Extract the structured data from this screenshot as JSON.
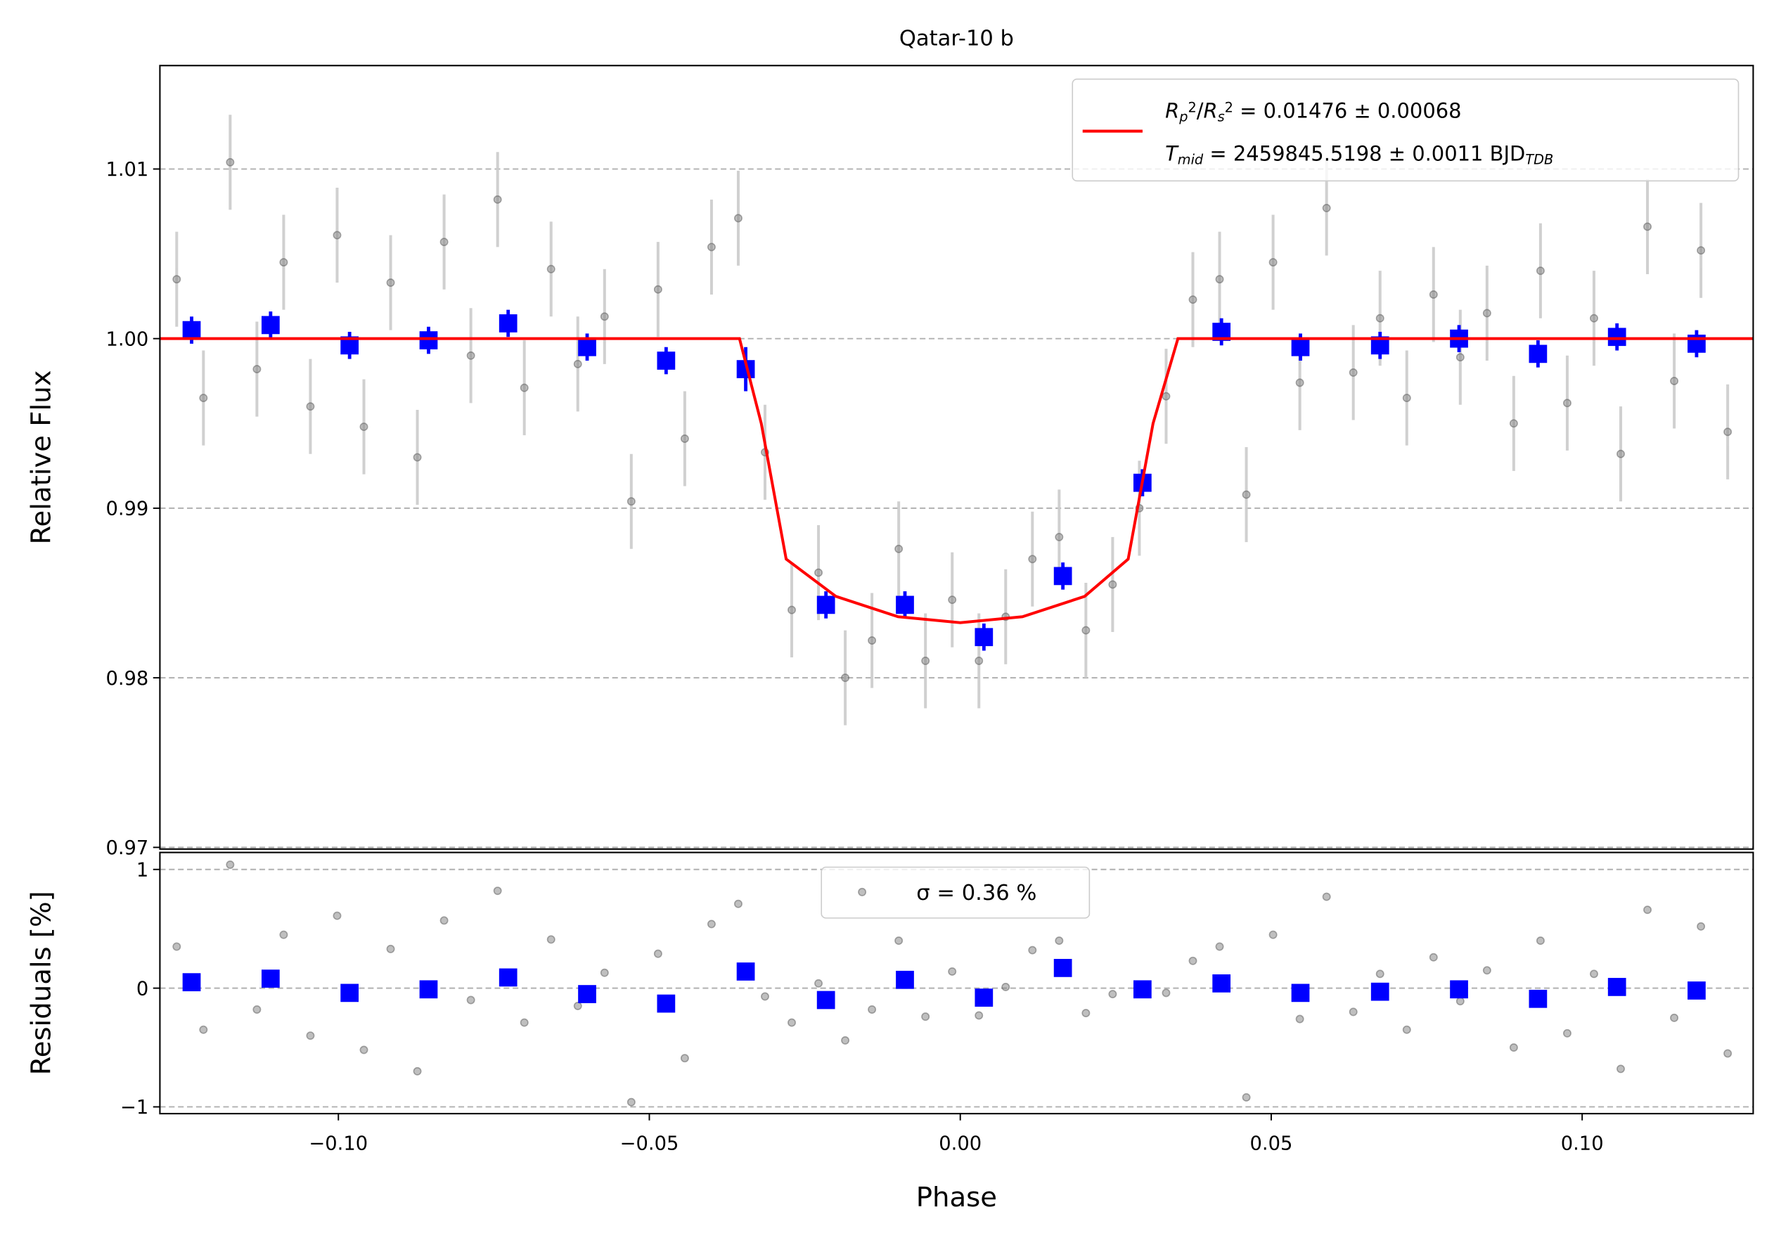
{
  "chart_data": [
    {
      "type": "scatter",
      "title": "Qatar-10 b",
      "ylabel": "Relative Flux",
      "xlim": [
        -0.1287,
        0.1275
      ],
      "ylim": [
        0.9699,
        1.0161
      ],
      "yticks": [
        0.97,
        0.98,
        0.99,
        {
          "value": 1.0,
          "label": "1.00"
        },
        1.01
      ],
      "grid": true,
      "legend": "upper right",
      "series": [
        {
          "mode": "points",
          "marker": "circle",
          "color": "#808080",
          "error_color": "#cccccc",
          "error": 0.0028,
          "x": [
            -0.126,
            -0.1217,
            -0.1174,
            -0.1131,
            -0.1088,
            -0.1045,
            -0.1002,
            -0.0959,
            -0.0916,
            -0.0873,
            -0.083,
            -0.0787,
            -0.0744,
            -0.0701,
            -0.0658,
            -0.0615,
            -0.0572,
            -0.0529,
            -0.0486,
            -0.0443,
            -0.04,
            -0.0357,
            -0.0314,
            -0.0271,
            -0.0228,
            -0.0185,
            -0.0142,
            -0.0099,
            -0.0056,
            -0.0013,
            0.003,
            0.0073,
            0.0116,
            0.0159,
            0.0202,
            0.0245,
            0.0288,
            0.0331,
            0.0374,
            0.0417,
            0.046,
            0.0503,
            0.0546,
            0.0589,
            0.0632,
            0.0675,
            0.0718,
            0.0761,
            0.0804,
            0.0847,
            0.089,
            0.0933,
            0.0976,
            0.1019,
            0.1062,
            0.1105,
            0.1148,
            0.1191,
            0.1234
          ],
          "values": [
            1.0035,
            0.9965,
            1.0104,
            0.9982,
            1.0045,
            0.996,
            1.0061,
            0.9948,
            1.0033,
            0.993,
            1.0057,
            0.999,
            1.0082,
            0.9971,
            1.0041,
            0.9985,
            1.0013,
            0.9904,
            1.0029,
            0.9941,
            1.0054,
            1.0071,
            0.9933,
            0.984,
            0.9862,
            0.98,
            0.9822,
            0.9876,
            0.981,
            0.9846,
            0.981,
            0.9836,
            0.987,
            0.9883,
            0.9828,
            0.9855,
            0.99,
            0.9966,
            1.0023,
            1.0035,
            0.9908,
            1.0045,
            0.9974,
            1.0077,
            0.998,
            1.0012,
            0.9965,
            1.0026,
            0.9989,
            1.0015,
            0.995,
            1.004,
            0.9962,
            1.0012,
            0.9932,
            1.0066,
            0.9975,
            1.0052,
            0.9945
          ]
        },
        {
          "mode": "points",
          "marker": "square",
          "color": "#0000ff",
          "error_color": "#0000ff",
          "x": [
            -0.1236,
            -0.1109,
            -0.0982,
            -0.0855,
            -0.0727,
            -0.06,
            -0.0473,
            -0.0345,
            -0.0216,
            -0.0089,
            0.0038,
            0.0165,
            0.0293,
            0.042,
            0.0547,
            0.0675,
            0.0802,
            0.0929,
            0.1056,
            0.1184
          ],
          "values": [
            1.0005,
            1.0008,
            0.9996,
            0.9999,
            1.0009,
            0.9995,
            0.9987,
            0.9982,
            0.9843,
            0.9843,
            0.9824,
            0.986,
            0.9915,
            1.0004,
            0.9995,
            0.9996,
            1.0,
            0.9991,
            1.0001,
            0.9997
          ],
          "errors": [
            0.0008,
            0.0008,
            0.0008,
            0.0008,
            0.0008,
            0.0008,
            0.0008,
            0.0013,
            0.0008,
            0.0008,
            0.0008,
            0.0008,
            0.0008,
            0.0008,
            0.0008,
            0.0008,
            0.0008,
            0.0008,
            0.0008,
            0.0008
          ]
        },
        {
          "mode": "line",
          "color": "#ff0000",
          "x": [
            -0.1287,
            -0.0355,
            -0.032,
            -0.028,
            -0.02,
            -0.01,
            0.0,
            0.01,
            0.02,
            0.027,
            0.031,
            0.035,
            0.1275
          ],
          "values": [
            1.0,
            1.0,
            0.995,
            0.987,
            0.9848,
            0.9836,
            0.98325,
            0.9836,
            0.9848,
            0.987,
            0.995,
            1.0,
            1.0
          ],
          "legend": [
            [
              {
                "text": "R",
                "italic": true
              },
              {
                "text": "p",
                "pos": "sub",
                "italic": true
              },
              {
                "text": "2",
                "pos": "sup"
              },
              {
                "text": "/"
              },
              {
                "text": "R",
                "italic": true
              },
              {
                "text": "s",
                "pos": "sub",
                "italic": true
              },
              {
                "text": "2",
                "pos": "sup"
              },
              {
                "text": " = 0.01476 ± 0.00068"
              }
            ],
            [
              {
                "text": "T",
                "italic": true
              },
              {
                "text": "mid",
                "pos": "sub",
                "italic": true
              },
              {
                "text": " = 2459845.5198 ± 0.0011 BJD"
              },
              {
                "text": "TDB",
                "pos": "sub",
                "italic": true
              }
            ]
          ]
        }
      ]
    },
    {
      "type": "scatter",
      "ylabel": "Residuals [%]",
      "xlabel": "Phase",
      "xlim": [
        -0.1287,
        0.1275
      ],
      "ylim": [
        -1.057,
        1.143
      ],
      "xticks": [
        {
          "value": -0.1,
          "label": "−0.10"
        },
        {
          "value": -0.05,
          "label": "−0.05"
        },
        {
          "value": 0.0,
          "label": "0.00"
        },
        {
          "value": 0.05,
          "label": "0.05"
        },
        {
          "value": 0.1,
          "label": "0.10"
        }
      ],
      "yticks": [
        {
          "value": -1,
          "label": "−1"
        },
        0,
        1
      ],
      "grid": true,
      "legend": "upper center",
      "series": [
        {
          "mode": "points",
          "marker": "circle",
          "color": "#808080",
          "name": "σ = 0.36 %",
          "x": [
            -0.126,
            -0.1217,
            -0.1174,
            -0.1131,
            -0.1088,
            -0.1045,
            -0.1002,
            -0.0959,
            -0.0916,
            -0.0873,
            -0.083,
            -0.0787,
            -0.0744,
            -0.0701,
            -0.0658,
            -0.0615,
            -0.0572,
            -0.0529,
            -0.0486,
            -0.0443,
            -0.04,
            -0.0357,
            -0.0314,
            -0.0271,
            -0.0228,
            -0.0185,
            -0.0142,
            -0.0099,
            -0.0056,
            -0.0013,
            0.003,
            0.0073,
            0.0116,
            0.0159,
            0.0202,
            0.0245,
            0.0288,
            0.0331,
            0.0374,
            0.0417,
            0.046,
            0.0503,
            0.0546,
            0.0589,
            0.0632,
            0.0675,
            0.0718,
            0.0761,
            0.0804,
            0.0847,
            0.089,
            0.0933,
            0.0976,
            0.1019,
            0.1062,
            0.1105,
            0.1148,
            0.1191,
            0.1234
          ],
          "values": [
            0.35,
            -0.35,
            1.04,
            -0.18,
            0.45,
            -0.4,
            0.61,
            -0.52,
            0.33,
            -0.7,
            0.57,
            -0.1,
            0.82,
            -0.29,
            0.41,
            -0.15,
            0.13,
            -0.96,
            0.29,
            -0.59,
            0.54,
            0.71,
            -0.07,
            -0.29,
            0.04,
            -0.44,
            -0.18,
            0.4,
            -0.24,
            0.14,
            -0.23,
            0.01,
            0.32,
            0.4,
            -0.21,
            -0.05,
            -0.05,
            -0.04,
            0.23,
            0.35,
            -0.92,
            0.45,
            -0.26,
            0.77,
            -0.2,
            0.12,
            -0.35,
            0.26,
            -0.11,
            0.15,
            -0.5,
            0.4,
            -0.38,
            0.12,
            -0.68,
            0.66,
            -0.25,
            0.52,
            -0.55
          ]
        },
        {
          "mode": "points",
          "marker": "square",
          "color": "#0000ff",
          "x": [
            -0.1236,
            -0.1109,
            -0.0982,
            -0.0855,
            -0.0727,
            -0.06,
            -0.0473,
            -0.0345,
            -0.0216,
            -0.0089,
            0.0038,
            0.0165,
            0.0293,
            0.042,
            0.0547,
            0.0675,
            0.0802,
            0.0929,
            0.1056,
            0.1184
          ],
          "values": [
            0.05,
            0.08,
            -0.04,
            -0.01,
            0.09,
            -0.05,
            -0.13,
            0.14,
            -0.1,
            0.07,
            -0.08,
            0.17,
            -0.01,
            0.04,
            -0.04,
            -0.03,
            -0.01,
            -0.09,
            0.01,
            -0.02
          ]
        }
      ]
    }
  ]
}
